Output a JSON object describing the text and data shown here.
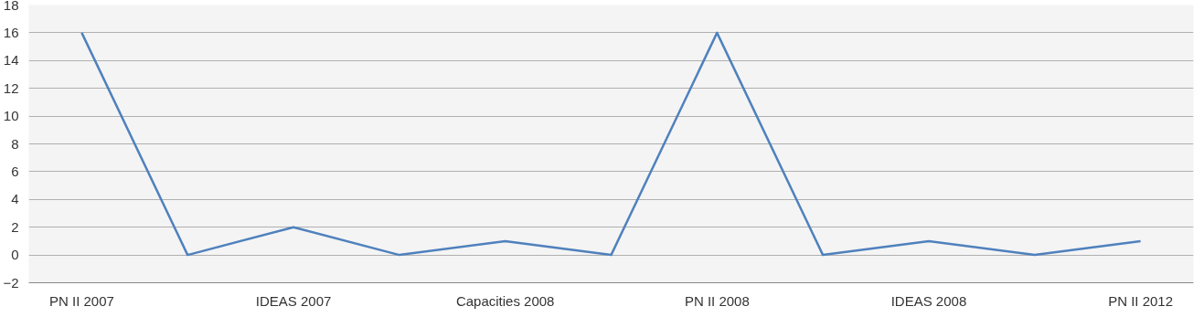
{
  "chart_data": {
    "type": "line",
    "categories": [
      "PN II 2007",
      null,
      "IDEAS 2007",
      null,
      "Capacities 2008",
      null,
      "PN II 2008",
      null,
      "IDEAS 2008",
      null,
      "PN II 2012"
    ],
    "series": [
      {
        "color": "#4f81bd",
        "values": [
          16,
          0,
          2,
          0,
          1,
          0,
          16,
          0,
          1,
          0,
          1
        ]
      }
    ],
    "ylim": [
      -2,
      18
    ],
    "yticks": [
      -2,
      0,
      2,
      4,
      6,
      8,
      10,
      12,
      14,
      16,
      18
    ],
    "grid": "y",
    "marker": "none",
    "line_style": "solid"
  }
}
